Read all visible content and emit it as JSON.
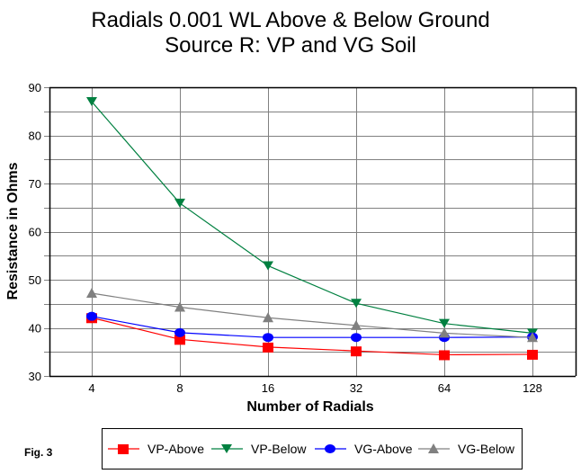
{
  "figure_label": "Fig. 3",
  "chart_data": {
    "type": "line",
    "title": [
      "Radials 0.001 WL Above & Below Ground",
      "Source R:  VP and VG Soil"
    ],
    "xlabel": "Number of Radials",
    "ylabel": "Resistance in Ohms",
    "categories": [
      "4",
      "8",
      "16",
      "32",
      "64",
      "128"
    ],
    "ylim": [
      30,
      90
    ],
    "yticks": [
      30,
      40,
      50,
      60,
      70,
      80,
      90
    ],
    "ygrid_step": 5,
    "grid": true,
    "legend_position": "bottom",
    "series": [
      {
        "name": "VP-Above",
        "color": "#ff0000",
        "marker": "square",
        "values": [
          42.1,
          37.6,
          36.0,
          35.2,
          34.4,
          34.5
        ]
      },
      {
        "name": "VP-Below",
        "color": "#008040",
        "marker": "triangle-down",
        "values": [
          87.0,
          65.9,
          52.9,
          45.1,
          40.9,
          38.9
        ]
      },
      {
        "name": "VG-Above",
        "color": "#0000ff",
        "marker": "circle",
        "values": [
          42.4,
          39.0,
          38.0,
          38.0,
          38.0,
          38.1
        ]
      },
      {
        "name": "VG-Below",
        "color": "#808080",
        "marker": "triangle-up",
        "values": [
          47.2,
          44.3,
          42.1,
          40.5,
          38.9,
          38.0
        ]
      }
    ]
  }
}
